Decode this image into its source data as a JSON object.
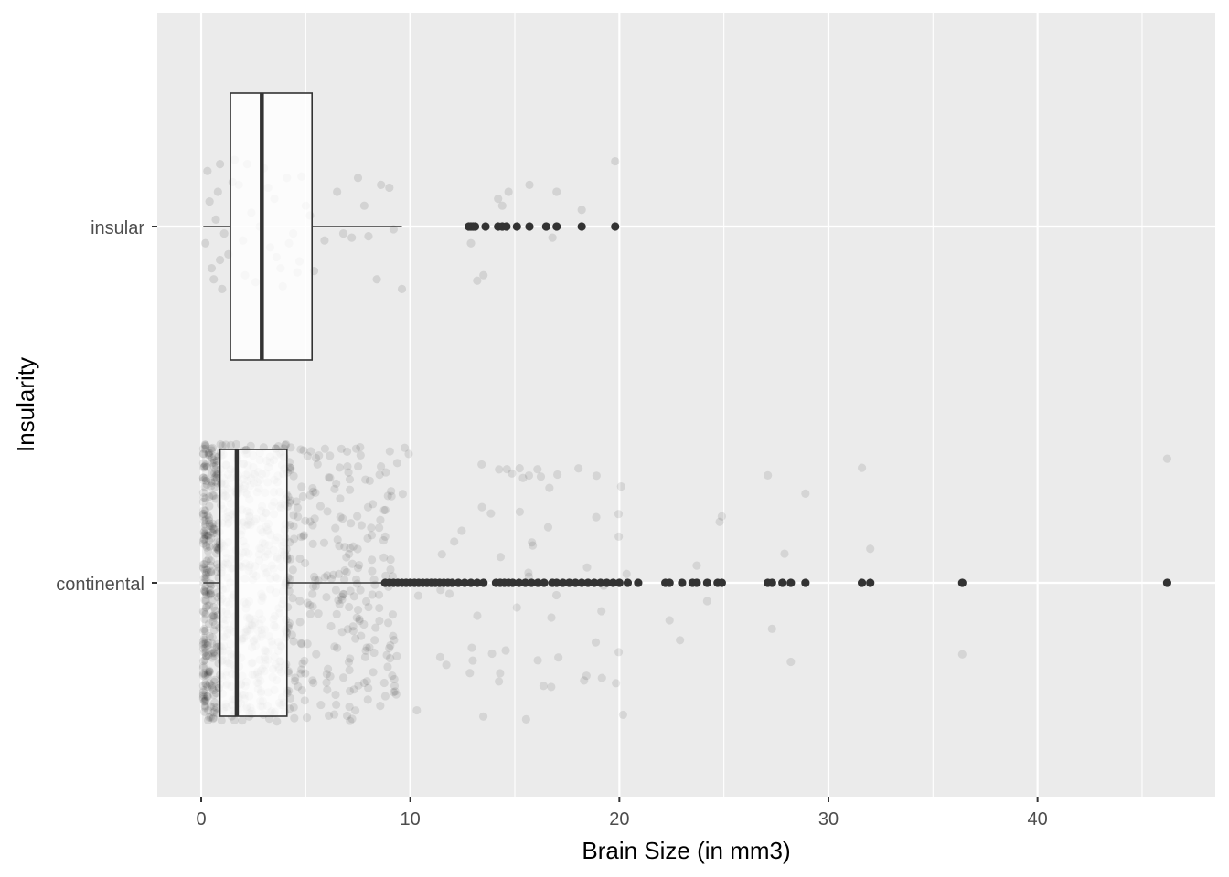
{
  "chart_data": {
    "type": "boxplot",
    "title": "",
    "xlabel": "Brain Size (in mm3)",
    "ylabel": "Insularity",
    "xlim": [
      -2.1,
      48.5
    ],
    "x_ticks": [
      0,
      10,
      20,
      30,
      40
    ],
    "x_minor_ticks": [
      5,
      15,
      25,
      35,
      45
    ],
    "orientation": "horizontal",
    "grid": true,
    "legend": "none",
    "colors": {
      "panel_background": "#ebebeb",
      "grid_line": "#ffffff",
      "box_fill": "#ffffff",
      "box_line": "#333333",
      "outlier": "#333333",
      "jitter_point": "#000000",
      "axis_text": "#4d4d4d",
      "axis_title": "#000000"
    },
    "categories": [
      "insular",
      "continental"
    ],
    "boxes": [
      {
        "category": "insular",
        "whisker_low": 0.1,
        "q1": 1.4,
        "median": 2.9,
        "q3": 5.3,
        "whisker_high": 9.6,
        "outliers": [
          12.8,
          12.9,
          13.0,
          13.1,
          13.6,
          14.2,
          14.4,
          14.6,
          15.1,
          15.7,
          16.5,
          17.0,
          18.2,
          19.8
        ]
      },
      {
        "category": "continental",
        "whisker_low": 0.1,
        "q1": 0.9,
        "median": 1.7,
        "q3": 4.1,
        "whisker_high": 8.7,
        "outliers": [
          8.8,
          9.0,
          9.2,
          9.4,
          9.6,
          9.8,
          10.0,
          10.2,
          10.4,
          10.6,
          10.8,
          11.0,
          11.2,
          11.4,
          11.6,
          11.8,
          12.0,
          12.3,
          12.6,
          12.9,
          13.2,
          13.5,
          14.1,
          14.3,
          14.5,
          14.7,
          14.9,
          15.2,
          15.5,
          15.8,
          16.1,
          16.4,
          16.8,
          17.0,
          17.3,
          17.6,
          17.9,
          18.2,
          18.5,
          18.8,
          19.1,
          19.4,
          19.7,
          20.0,
          20.4,
          20.9,
          22.2,
          22.4,
          23.0,
          23.5,
          23.7,
          24.2,
          24.7,
          24.9,
          27.1,
          27.3,
          27.8,
          28.2,
          28.9,
          31.6,
          32.0,
          36.4,
          46.2
        ]
      }
    ],
    "jitter_points": {
      "insular": [
        [
          0.2,
          0.12
        ],
        [
          0.5,
          0.3
        ],
        [
          0.8,
          -0.25
        ],
        [
          1.0,
          0.45
        ],
        [
          0.3,
          -0.4
        ],
        [
          0.7,
          -0.05
        ],
        [
          1.3,
          0.2
        ],
        [
          1.8,
          -0.3
        ],
        [
          2.1,
          0.35
        ],
        [
          2.4,
          -0.1
        ],
        [
          2.6,
          0.4
        ],
        [
          3.0,
          -0.42
        ],
        [
          3.3,
          0.15
        ],
        [
          3.5,
          -0.2
        ],
        [
          3.8,
          0.3
        ],
        [
          4.1,
          -0.35
        ],
        [
          4.4,
          0.05
        ],
        [
          4.7,
          0.25
        ],
        [
          5.0,
          -0.15
        ],
        [
          5.4,
          0.32
        ],
        [
          5.9,
          0.1
        ],
        [
          6.5,
          -0.25
        ],
        [
          7.2,
          0.08
        ],
        [
          7.8,
          -0.15
        ],
        [
          8.4,
          0.38
        ],
        [
          8.6,
          -0.3
        ],
        [
          9.2,
          0.02
        ],
        [
          9.6,
          0.45
        ],
        [
          12.9,
          0.12
        ],
        [
          13.2,
          0.39
        ],
        [
          13.5,
          0.35
        ],
        [
          14.2,
          -0.2
        ],
        [
          14.4,
          -0.15
        ],
        [
          14.7,
          -0.25
        ],
        [
          15.7,
          -0.3
        ],
        [
          16.8,
          0.08
        ],
        [
          17.0,
          -0.25
        ],
        [
          18.2,
          -0.12
        ],
        [
          19.8,
          -0.47
        ],
        [
          1.6,
          -0.48
        ],
        [
          0.9,
          0.24
        ],
        [
          2.8,
          0.0
        ],
        [
          4.8,
          -0.36
        ],
        [
          6.8,
          0.05
        ],
        [
          9.0,
          -0.28
        ],
        [
          0.4,
          -0.18
        ],
        [
          3.9,
          0.43
        ],
        [
          2.2,
          -0.45
        ],
        [
          1.1,
          0.05
        ],
        [
          3.6,
          0.22
        ],
        [
          0.6,
          0.38
        ],
        [
          2.0,
          0.1
        ],
        [
          4.6,
          0.33
        ],
        [
          1.5,
          -0.32
        ],
        [
          5.2,
          -0.08
        ],
        [
          8.0,
          0.07
        ],
        [
          7.5,
          -0.35
        ],
        [
          0.9,
          -0.45
        ],
        [
          3.2,
          -0.28
        ],
        [
          4.2,
          0.12
        ]
      ],
      "continental": []
    }
  }
}
